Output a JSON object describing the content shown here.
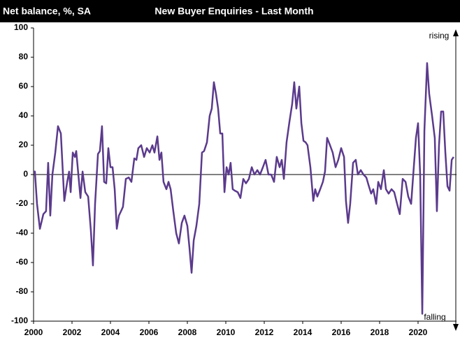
{
  "chart_data": {
    "type": "line",
    "title": "New Buyer Enquiries - Last Month",
    "y_label": "Net balance, %, SA",
    "annotations": [
      "rising",
      "falling"
    ],
    "xlim": [
      2000,
      2022
    ],
    "xticks": [
      2000,
      2002,
      2004,
      2006,
      2008,
      2010,
      2012,
      2014,
      2016,
      2018,
      2020
    ],
    "ylim": [
      -100,
      100
    ],
    "yticks": [
      -100,
      -80,
      -60,
      -40,
      -20,
      0,
      20,
      40,
      60,
      80,
      100
    ],
    "grid": false,
    "x": [
      2000.0,
      2000.07,
      2000.18,
      2000.33,
      2000.51,
      2000.65,
      2000.76,
      2000.87,
      2000.98,
      2001.13,
      2001.27,
      2001.42,
      2001.6,
      2001.75,
      2001.85,
      2001.93,
      2002.04,
      2002.15,
      2002.22,
      2002.33,
      2002.44,
      2002.55,
      2002.69,
      2002.84,
      2002.98,
      2003.09,
      2003.2,
      2003.35,
      2003.45,
      2003.56,
      2003.67,
      2003.78,
      2003.89,
      2004.0,
      2004.11,
      2004.22,
      2004.33,
      2004.44,
      2004.55,
      2004.65,
      2004.8,
      2004.95,
      2005.09,
      2005.24,
      2005.35,
      2005.45,
      2005.6,
      2005.75,
      2005.89,
      2006.04,
      2006.18,
      2006.29,
      2006.44,
      2006.55,
      2006.65,
      2006.76,
      2006.91,
      2007.02,
      2007.13,
      2007.27,
      2007.42,
      2007.56,
      2007.71,
      2007.85,
      2008.0,
      2008.11,
      2008.22,
      2008.33,
      2008.47,
      2008.62,
      2008.76,
      2008.87,
      2009.02,
      2009.16,
      2009.27,
      2009.38,
      2009.49,
      2009.6,
      2009.71,
      2009.82,
      2009.93,
      2010.04,
      2010.15,
      2010.25,
      2010.36,
      2010.47,
      2010.62,
      2010.76,
      2010.91,
      2011.05,
      2011.2,
      2011.35,
      2011.49,
      2011.64,
      2011.78,
      2011.93,
      2012.07,
      2012.22,
      2012.36,
      2012.51,
      2012.65,
      2012.8,
      2012.91,
      2013.02,
      2013.16,
      2013.31,
      2013.45,
      2013.56,
      2013.67,
      2013.82,
      2013.93,
      2014.04,
      2014.15,
      2014.25,
      2014.4,
      2014.55,
      2014.65,
      2014.76,
      2014.91,
      2015.05,
      2015.16,
      2015.27,
      2015.42,
      2015.56,
      2015.71,
      2015.85,
      2016.0,
      2016.15,
      2016.25,
      2016.36,
      2016.47,
      2016.62,
      2016.76,
      2016.87,
      2017.02,
      2017.16,
      2017.31,
      2017.42,
      2017.56,
      2017.67,
      2017.82,
      2017.93,
      2018.07,
      2018.22,
      2018.33,
      2018.47,
      2018.62,
      2018.76,
      2018.91,
      2019.05,
      2019.2,
      2019.35,
      2019.49,
      2019.64,
      2019.75,
      2019.89,
      2020.0,
      2020.11,
      2020.22,
      2020.33,
      2020.47,
      2020.58,
      2020.73,
      2020.87,
      2020.98,
      2021.09,
      2021.2,
      2021.31,
      2021.42,
      2021.53,
      2021.64,
      2021.75,
      2021.85
    ],
    "series": [
      {
        "name": "New Buyer Enquiries",
        "color": "#5b3a8c",
        "values": [
          2,
          2,
          -20,
          -37,
          -27,
          -25,
          8,
          -28,
          0,
          15,
          33,
          28,
          -18,
          -5,
          2,
          -12,
          15,
          12,
          16,
          0,
          -16,
          2,
          -12,
          -15,
          -38,
          -62,
          -20,
          14,
          16,
          33,
          -5,
          -6,
          18,
          5,
          5,
          -10,
          -37,
          -28,
          -25,
          -22,
          -3,
          -2,
          -5,
          11,
          10,
          18,
          20,
          12,
          18,
          15,
          20,
          15,
          26,
          10,
          15,
          -5,
          -10,
          -5,
          -10,
          -25,
          -40,
          -47,
          -33,
          -28,
          -35,
          -50,
          -67,
          -45,
          -35,
          -20,
          15,
          16,
          22,
          40,
          45,
          63,
          55,
          45,
          28,
          28,
          -12,
          5,
          0,
          8,
          -10,
          -11,
          -12,
          -16,
          -3,
          -6,
          -3,
          5,
          0,
          3,
          0,
          5,
          10,
          0,
          0,
          -5,
          12,
          5,
          10,
          -3,
          22,
          36,
          48,
          63,
          45,
          60,
          35,
          23,
          22,
          20,
          5,
          -18,
          -10,
          -15,
          -10,
          -5,
          2,
          25,
          20,
          15,
          5,
          10,
          18,
          12,
          -18,
          -33,
          -20,
          8,
          10,
          0,
          3,
          0,
          -2,
          -7,
          -13,
          -10,
          -20,
          -5,
          -10,
          3,
          -10,
          -13,
          -10,
          -12,
          -20,
          -27,
          -3,
          -5,
          -15,
          -20,
          0,
          25,
          35,
          0,
          -95,
          30,
          76,
          55,
          40,
          25,
          -25,
          20,
          43,
          43,
          15,
          -8,
          -11,
          10,
          12
        ]
      }
    ]
  }
}
